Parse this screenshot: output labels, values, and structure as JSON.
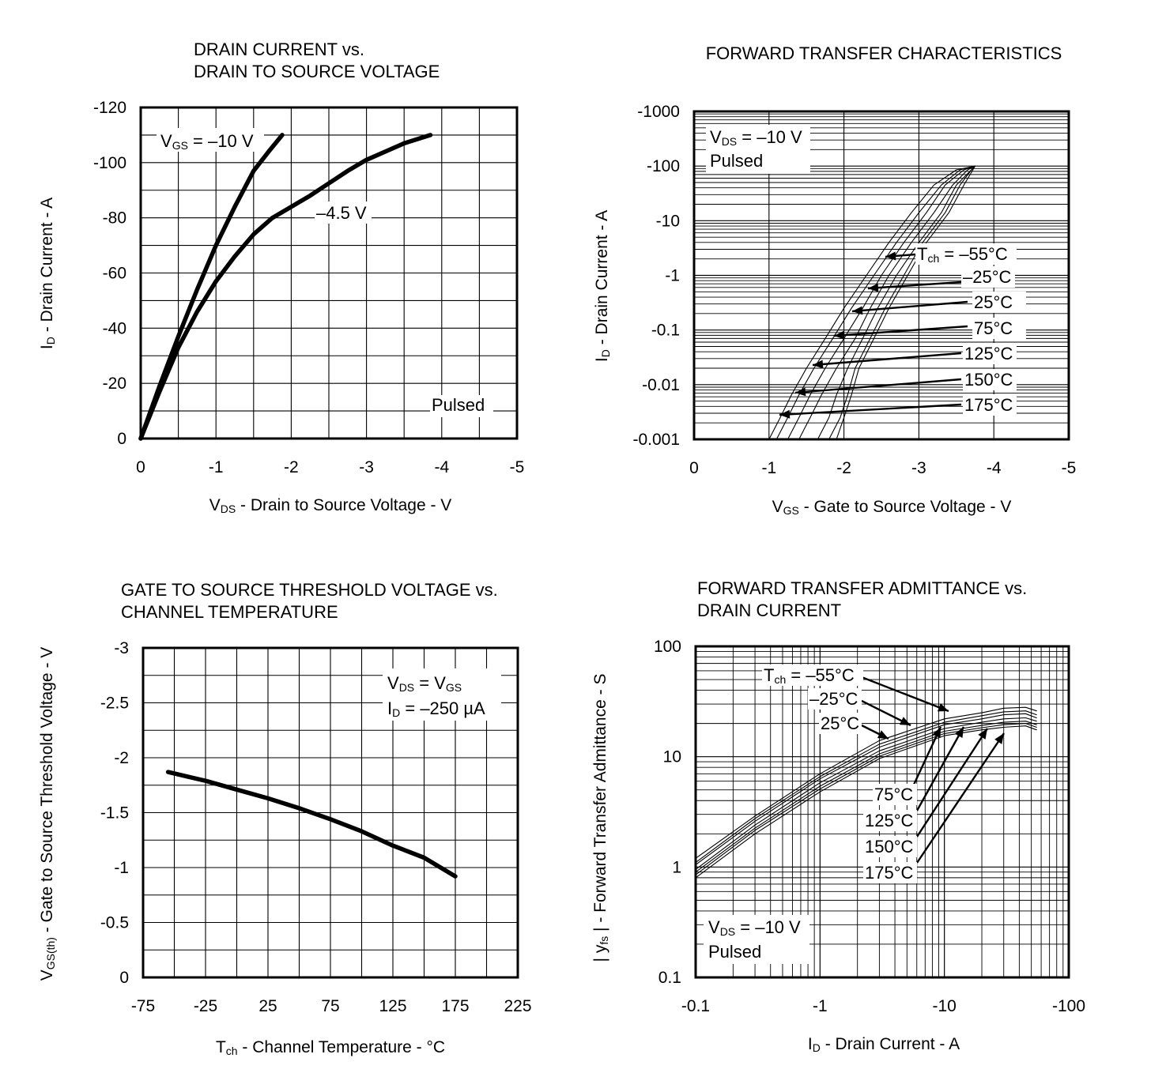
{
  "chart_data": [
    {
      "type": "line",
      "title": [
        "DRAIN CURRENT vs.",
        "DRAIN TO SOURCE VOLTAGE"
      ],
      "xlabel": {
        "main": "V",
        "sub": "DS",
        "rest": " - Drain to Source Voltage - V"
      },
      "ylabel": {
        "main": "I",
        "sub": "D",
        "rest": " - Drain Current - A"
      },
      "xlim": [
        0,
        -5
      ],
      "ylim": [
        0,
        -120
      ],
      "x_ticks": [
        0,
        -1,
        -2,
        -3,
        -4,
        -5
      ],
      "x_tick_labels": [
        "0",
        "-1",
        "-2",
        "-3",
        "-4",
        "-5"
      ],
      "y_ticks": [
        0,
        -20,
        -40,
        -60,
        -80,
        -100,
        -120
      ],
      "y_tick_labels": [
        "0",
        "-20",
        "-40",
        "-60",
        "-80",
        "-100",
        "-120"
      ],
      "grid": true,
      "notes": [
        "Pulsed"
      ],
      "series": [
        {
          "name": "VGS = –10 V",
          "label": {
            "main": "V",
            "sub": "GS",
            "rest": " = –10 V"
          },
          "x": [
            0,
            -0.25,
            -0.5,
            -0.75,
            -1.0,
            -1.25,
            -1.5,
            -1.7,
            -1.88
          ],
          "y": [
            0,
            -19,
            -37,
            -54,
            -70,
            -84,
            -97,
            -104,
            -110
          ]
        },
        {
          "name": "–4.5 V",
          "label": {
            "main": "–4.5 V",
            "sub": "",
            "rest": ""
          },
          "x": [
            0,
            -0.25,
            -0.5,
            -0.75,
            -1.0,
            -1.25,
            -1.5,
            -1.75,
            -2.0,
            -2.25,
            -2.5,
            -2.75,
            -3.0,
            -3.25,
            -3.5,
            -3.85
          ],
          "y": [
            0,
            -17,
            -33,
            -46,
            -57,
            -66,
            -74,
            -80,
            -84,
            -88,
            -92.5,
            -97,
            -101,
            -104,
            -107,
            -110
          ]
        }
      ]
    },
    {
      "type": "line",
      "title": [
        "FORWARD TRANSFER CHARACTERISTICS"
      ],
      "xlabel": {
        "main": "V",
        "sub": "GS",
        "rest": " - Gate to Source Voltage - V"
      },
      "ylabel": {
        "main": "I",
        "sub": "D",
        "rest": " - Drain Current - A"
      },
      "xlim": [
        0,
        -5
      ],
      "ylim": [
        -0.001,
        -1000
      ],
      "yscale": "log",
      "x_ticks": [
        0,
        -1,
        -2,
        -3,
        -4,
        -5
      ],
      "x_tick_labels": [
        "0",
        "-1",
        "-2",
        "-3",
        "-4",
        "-5"
      ],
      "y_ticks": [
        -0.001,
        -0.01,
        -0.1,
        -1,
        -10,
        -100,
        -1000
      ],
      "y_tick_labels": [
        "-0.001",
        "-0.01",
        "-0.1",
        "-1",
        "-10",
        "-100",
        "-1000"
      ],
      "grid": true,
      "notes": [
        {
          "main": "V",
          "sub": "DS",
          "rest": " = –10 V"
        },
        {
          "main": "Pulsed",
          "sub": "",
          "rest": ""
        }
      ],
      "series": [
        {
          "name": "175°C",
          "label": {
            "main": "175°C",
            "sub": "",
            "rest": ""
          },
          "x": [
            -1.0,
            -1.15,
            -1.3,
            -1.5,
            -1.75,
            -2.0,
            -2.3,
            -2.6,
            -2.9,
            -3.2,
            -3.5,
            -3.75
          ],
          "y": [
            -0.001,
            -0.0025,
            -0.0065,
            -0.02,
            -0.07,
            -0.25,
            -1.0,
            -4.0,
            -14,
            -45,
            -85,
            -100
          ]
        },
        {
          "name": "150°C",
          "label": {
            "main": "150°C",
            "sub": "",
            "rest": ""
          },
          "x": [
            -1.1,
            -1.25,
            -1.4,
            -1.6,
            -1.85,
            -2.1,
            -2.4,
            -2.7,
            -3.0,
            -3.3,
            -3.55,
            -3.75
          ],
          "y": [
            -0.001,
            -0.0025,
            -0.0065,
            -0.02,
            -0.07,
            -0.25,
            -1.0,
            -4.0,
            -14,
            -45,
            -85,
            -100
          ]
        },
        {
          "name": "125°C",
          "label": {
            "main": "125°C",
            "sub": "",
            "rest": ""
          },
          "x": [
            -1.25,
            -1.4,
            -1.55,
            -1.75,
            -2.0,
            -2.25,
            -2.5,
            -2.8,
            -3.1,
            -3.35,
            -3.6,
            -3.75
          ],
          "y": [
            -0.001,
            -0.0025,
            -0.0065,
            -0.02,
            -0.07,
            -0.25,
            -1.0,
            -4.0,
            -14,
            -45,
            -85,
            -100
          ]
        },
        {
          "name": "75°C",
          "label": {
            "main": "75°C",
            "sub": "",
            "rest": ""
          },
          "x": [
            -1.4,
            -1.55,
            -1.7,
            -1.9,
            -2.15,
            -2.35,
            -2.6,
            -2.9,
            -3.2,
            -3.45,
            -3.65,
            -3.75
          ],
          "y": [
            -0.001,
            -0.0025,
            -0.0065,
            -0.02,
            -0.07,
            -0.25,
            -1.0,
            -4.0,
            -14,
            -45,
            -85,
            -100
          ]
        },
        {
          "name": "25°C",
          "label": {
            "main": "25°C",
            "sub": "",
            "rest": ""
          },
          "x": [
            -1.65,
            -1.8,
            -1.9,
            -2.05,
            -2.25,
            -2.45,
            -2.7,
            -3.0,
            -3.3,
            -3.5,
            -3.7,
            -3.75
          ],
          "y": [
            -0.001,
            -0.0025,
            -0.0065,
            -0.02,
            -0.07,
            -0.25,
            -1.0,
            -4.0,
            -14,
            -45,
            -85,
            -100
          ]
        },
        {
          "name": "–25°C",
          "label": {
            "main": "–25°C",
            "sub": "",
            "rest": ""
          },
          "x": [
            -1.8,
            -1.95,
            -2.05,
            -2.15,
            -2.35,
            -2.55,
            -2.8,
            -3.05,
            -3.35,
            -3.55,
            -3.7,
            -3.75
          ],
          "y": [
            -0.001,
            -0.0025,
            -0.0065,
            -0.02,
            -0.07,
            -0.25,
            -1.0,
            -4.0,
            -14,
            -45,
            -85,
            -100
          ]
        },
        {
          "name": "–55°C",
          "label": {
            "main": "T",
            "sub": "ch",
            "rest": " = –55°C"
          },
          "x": [
            -1.9,
            -2.0,
            -2.1,
            -2.2,
            -2.4,
            -2.6,
            -2.85,
            -3.1,
            -3.4,
            -3.6,
            -3.72,
            -3.75
          ],
          "y": [
            -0.001,
            -0.0025,
            -0.0065,
            -0.02,
            -0.07,
            -0.25,
            -1.0,
            -4.0,
            -14,
            -45,
            -85,
            -100
          ]
        }
      ]
    },
    {
      "type": "line",
      "title": [
        "GATE TO SOURCE THRESHOLD VOLTAGE vs.",
        "CHANNEL TEMPERATURE"
      ],
      "xlabel": {
        "main": "T",
        "sub": "ch",
        "rest": " - Channel Temperature - °C"
      },
      "ylabel": {
        "main": "V",
        "sub": "GS(th)",
        "rest": " - Gate to Source Threshold Voltage - V"
      },
      "xlim": [
        -75,
        225
      ],
      "ylim": [
        0,
        -3
      ],
      "x_ticks": [
        -75,
        -25,
        25,
        75,
        125,
        175,
        225
      ],
      "x_tick_labels": [
        "-75",
        "-25",
        "25",
        "75",
        "125",
        "175",
        "225"
      ],
      "y_ticks": [
        0,
        -0.5,
        -1,
        -1.5,
        -2,
        -2.5,
        -3
      ],
      "y_tick_labels": [
        "0",
        "-0.5",
        "-1",
        "-1.5",
        "-2",
        "-2.5",
        "-3"
      ],
      "grid": true,
      "notes": [
        {
          "main": "V",
          "sub": "DS",
          "rest": " = V",
          "sub2": "GS"
        },
        {
          "main": "I",
          "sub": "D",
          "rest": " = –250 µA"
        }
      ],
      "series": [
        {
          "name": "VGS(th)",
          "x": [
            -55,
            -25,
            0,
            25,
            50,
            75,
            100,
            125,
            150,
            175
          ],
          "y": [
            -1.87,
            -1.79,
            -1.71,
            -1.63,
            -1.54,
            -1.44,
            -1.33,
            -1.2,
            -1.09,
            -0.92
          ]
        }
      ]
    },
    {
      "type": "line",
      "title": [
        "FORWARD TRANSFER ADMITTANCE vs.",
        "DRAIN CURRENT"
      ],
      "xlabel": {
        "main": "I",
        "sub": "D",
        "rest": " - Drain Current - A"
      },
      "ylabel": {
        "main": "| y",
        "sub": "fs",
        "rest": " | - Forward Transfer Admittance - S"
      },
      "xlim": [
        -0.1,
        -100
      ],
      "ylim": [
        0.1,
        100
      ],
      "xscale": "log",
      "yscale": "log",
      "x_ticks": [
        -0.1,
        -1,
        -10,
        -100
      ],
      "x_tick_labels": [
        "-0.1",
        "-1",
        "-10",
        "-100"
      ],
      "y_ticks": [
        0.1,
        1,
        10,
        100
      ],
      "y_tick_labels": [
        "0.1",
        "1",
        "10",
        "100"
      ],
      "grid": true,
      "notes": [
        {
          "main": "V",
          "sub": "DS",
          "rest": " = –10 V"
        },
        {
          "main": "Pulsed",
          "sub": "",
          "rest": ""
        }
      ],
      "series": [
        {
          "name": "–55°C",
          "label": {
            "main": "T",
            "sub": "ch",
            "rest": " = –55°C"
          },
          "x": [
            -0.1,
            -0.3,
            -1,
            -3,
            -10,
            -20,
            -30,
            -45,
            -55
          ],
          "y": [
            1.2,
            2.9,
            7.0,
            14,
            22,
            25,
            27.5,
            28,
            26
          ]
        },
        {
          "name": "–25°C",
          "label": {
            "main": "–25°C",
            "sub": "",
            "rest": ""
          },
          "x": [
            -0.1,
            -0.3,
            -1,
            -3,
            -10,
            -20,
            -30,
            -45,
            -55
          ],
          "y": [
            1.1,
            2.75,
            6.6,
            13,
            20.5,
            23.5,
            25.5,
            26,
            24
          ]
        },
        {
          "name": "25°C",
          "label": {
            "main": "25°C",
            "sub": "",
            "rest": ""
          },
          "x": [
            -0.1,
            -0.3,
            -1,
            -3,
            -10,
            -20,
            -30,
            -45,
            -55
          ],
          "y": [
            1.05,
            2.6,
            6.3,
            12.2,
            19.5,
            22,
            24,
            24.5,
            22.5
          ]
        },
        {
          "name": "75°C",
          "label": {
            "main": "75°C",
            "sub": "",
            "rest": ""
          },
          "x": [
            -0.1,
            -0.3,
            -1,
            -3,
            -10,
            -20,
            -30,
            -45,
            -55
          ],
          "y": [
            0.95,
            2.4,
            5.8,
            11.3,
            18,
            20.5,
            22,
            22.5,
            21
          ]
        },
        {
          "name": "125°C",
          "label": {
            "main": "125°C",
            "sub": "",
            "rest": ""
          },
          "x": [
            -0.1,
            -0.3,
            -1,
            -3,
            -10,
            -20,
            -30,
            -45,
            -55
          ],
          "y": [
            0.9,
            2.25,
            5.4,
            10.6,
            17,
            19.2,
            20.5,
            21,
            19.5
          ]
        },
        {
          "name": "150°C",
          "label": {
            "main": "150°C",
            "sub": "",
            "rest": ""
          },
          "x": [
            -0.1,
            -0.3,
            -1,
            -3,
            -10,
            -20,
            -30,
            -45,
            -55
          ],
          "y": [
            0.85,
            2.15,
            5.1,
            10.1,
            16.2,
            18.3,
            19.5,
            20,
            18.5
          ]
        },
        {
          "name": "175°C",
          "label": {
            "main": "175°C",
            "sub": "",
            "rest": ""
          },
          "x": [
            -0.1,
            -0.3,
            -1,
            -3,
            -10,
            -20,
            -30,
            -45,
            -55
          ],
          "y": [
            0.8,
            2.0,
            4.8,
            9.6,
            15.5,
            17.5,
            18.5,
            19,
            17.5
          ]
        }
      ]
    }
  ]
}
